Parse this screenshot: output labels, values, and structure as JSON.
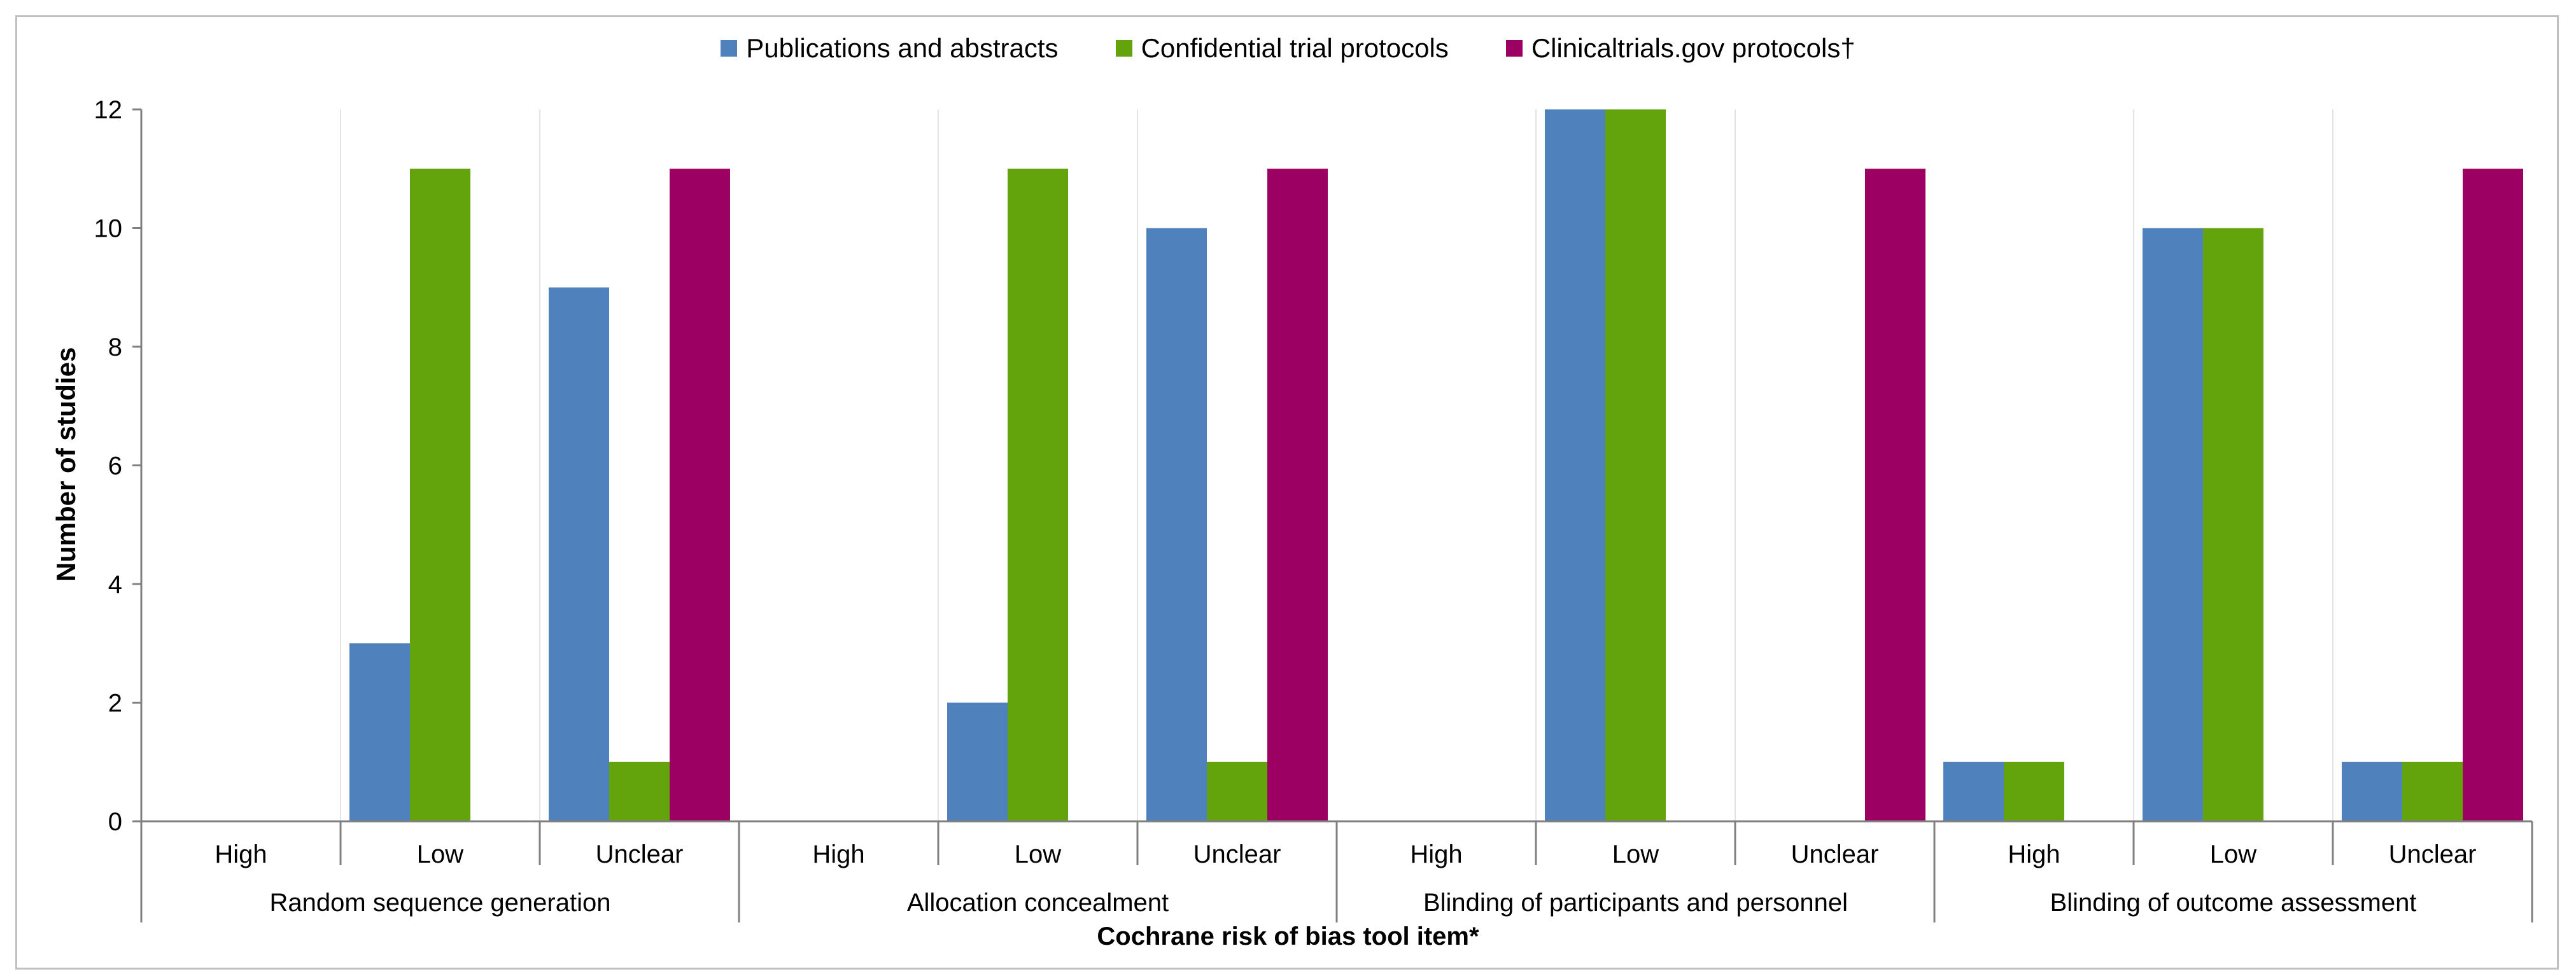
{
  "chart_data": {
    "type": "bar",
    "xlabel": "Cochrane risk of bias tool item*",
    "ylabel": "Number of studies",
    "ylim": [
      0,
      12
    ],
    "yticks": [
      0,
      2,
      4,
      6,
      8,
      10,
      12
    ],
    "grid": "vertical separators between categories",
    "legend_position": "top-center",
    "groups": [
      {
        "label": "Random sequence generation",
        "categories": [
          "High",
          "Low",
          "Unclear"
        ]
      },
      {
        "label": "Allocation concealment",
        "categories": [
          "High",
          "Low",
          "Unclear"
        ]
      },
      {
        "label": "Blinding of participants and personnel",
        "categories": [
          "High",
          "Low",
          "Unclear"
        ]
      },
      {
        "label": "Blinding of outcome assessment",
        "categories": [
          "High",
          "Low",
          "Unclear"
        ]
      }
    ],
    "series": [
      {
        "name": "Publications and abstracts",
        "color": "#4f81bd",
        "values": [
          0,
          3,
          9,
          0,
          2,
          10,
          0,
          12,
          0,
          1,
          10,
          1
        ]
      },
      {
        "name": "Confidential trial protocols",
        "color": "#63a30b",
        "values": [
          0,
          11,
          1,
          0,
          11,
          1,
          0,
          12,
          0,
          1,
          10,
          1
        ]
      },
      {
        "name": "Clinicaltrials.gov protocols†",
        "color": "#9b0062",
        "values": [
          0,
          0,
          11,
          0,
          0,
          11,
          0,
          0,
          11,
          0,
          0,
          11
        ]
      }
    ]
  }
}
